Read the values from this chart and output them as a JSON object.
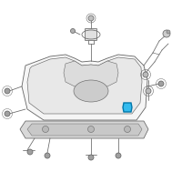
{
  "bg_color": "#ffffff",
  "line_color": "#666666",
  "fill_tank": "#f5f5f5",
  "fill_inner": "#e8e8e8",
  "fill_skid": "#d8d8d8",
  "highlight_color": "#33bbee",
  "highlight_edge": "#0077aa",
  "fig_size": [
    2.0,
    2.0
  ],
  "dpi": 100,
  "lw": 0.55
}
